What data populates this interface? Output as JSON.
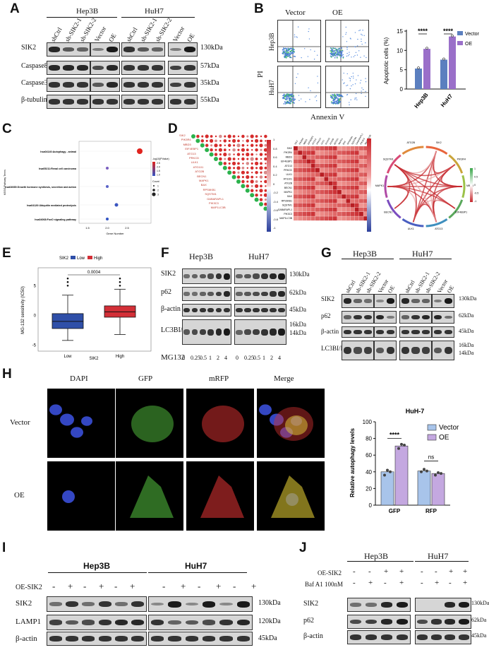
{
  "panels": {
    "A": {
      "letter": "A",
      "groups": [
        "Hep3B",
        "HuH7"
      ],
      "lanes": [
        "shCtrl",
        "sh-SIK2-1",
        "sh-SIK2-2",
        "Vector",
        "OE",
        "shCtrl",
        "sh-SIK2-1",
        "sh-SIK2-2",
        "Vector",
        "OE"
      ],
      "rows": [
        {
          "label": "SIK2",
          "size": "130kDa"
        },
        {
          "label": "Caspase8",
          "size": "57kDa"
        },
        {
          "label": "Caspase3",
          "size": "35kDa"
        },
        {
          "label": "β-tubulin",
          "size": "55kDa"
        }
      ]
    },
    "B": {
      "letter": "B",
      "flow_cols": [
        "Vector",
        "OE"
      ],
      "flow_rows": [
        "Hep3B",
        "HuH7"
      ],
      "ylabel": "PI",
      "xlabel": "Annexin V",
      "legend": [
        "Vector",
        "OE"
      ],
      "sig": "****"
    },
    "C": {
      "letter": "C",
      "terms": [
        "hsa04140:Autophagy - animal",
        "hsa05211:Renal cell carcinoma",
        "hsa04935:Growth hormone synthesis, secretion and action",
        "hsa04120:Ubiquitin mediated proteolysis",
        "hsa04068:FoxO signaling pathway"
      ],
      "ylabel": "KEGG Pathway Terms",
      "xlabel": "Gene Number",
      "xticks": [
        "1.5",
        "2.0",
        "2.5"
      ],
      "legend_title1": "-log10(PValue)",
      "legend_vals1": [
        "2.5",
        "2.0",
        "1.5",
        "1.0"
      ],
      "legend_title2": "Count",
      "legend_vals2": [
        "1",
        "2",
        "3"
      ]
    },
    "D": {
      "letter": "D",
      "genes": [
        "SIK2",
        "PIK3R4",
        "MBD3",
        "EIF4EBP1",
        "ATG13",
        "PRKCD",
        "ULK1",
        "ATG101",
        "ATG2B",
        "BECN1",
        "MAPK1",
        "BAX",
        "RPS6KB1",
        "SQSTM1",
        "GABARAPL1",
        "PIK3C3",
        "MAP1LC3B"
      ],
      "scale": [
        "1",
        "0.8",
        "0.6",
        "0.4",
        "0.2",
        "0",
        "-0.2",
        "-0.4",
        "-0.6",
        "-0.8",
        "-1"
      ],
      "chord_labels": [
        "SIK2",
        "PIK3R4",
        "MBD3",
        "EIF4EBP1",
        "ATG13",
        "ULK1",
        "BECN1",
        "MAPK1",
        "SQSTM1",
        "ATG2B"
      ],
      "chord_scale": [
        "1",
        "0.5",
        "0",
        "-0.5",
        "-1"
      ]
    },
    "E": {
      "letter": "E",
      "legend_title": "SIK2",
      "legend": [
        "Low",
        "High"
      ],
      "pvalue": "0.0004",
      "ylabel": "MG-132 sensitivity (IC50)",
      "xlabel": "SIK2",
      "categories": [
        "Low",
        "High"
      ],
      "yticks": [
        "5",
        "0",
        "-5"
      ]
    },
    "F": {
      "letter": "F",
      "groups": [
        "Hep3B",
        "HuH7"
      ],
      "rows": [
        {
          "label": "SIK2",
          "size": "130kDa"
        },
        {
          "label": "p62",
          "size": "62kDa"
        },
        {
          "label": "β-actin",
          "size": "45kDa"
        },
        {
          "label": "LC3BI/II",
          "size": "16kDa",
          "size2": "14kDa"
        }
      ],
      "treatment": "MG132",
      "doses": [
        "0",
        "0.25",
        "0.5",
        "1",
        "2",
        "4",
        "0",
        "0.25",
        "0.5",
        "1",
        "2",
        "4"
      ]
    },
    "G": {
      "letter": "G",
      "groups": [
        "Hep3B",
        "HuH7"
      ],
      "lanes": [
        "shCtrl",
        "sh-SIK2-1",
        "sh-SIK2-2",
        "Vector",
        "OE",
        "shCtrl",
        "sh-SIK2-1",
        "sh-SIK2-2",
        "Vector",
        "OE"
      ],
      "rows": [
        {
          "label": "SIK2",
          "size": "130kDa"
        },
        {
          "label": "p62",
          "size": "62kDa"
        },
        {
          "label": "β-actin",
          "size": "45kDa"
        },
        {
          "label": "LC3BI/II",
          "size": "16kDa",
          "size2": "14kDa"
        }
      ]
    },
    "H": {
      "letter": "H",
      "channels": [
        "DAPI",
        "GFP",
        "mRFP",
        "Merge"
      ],
      "rows": [
        "Vector",
        "OE"
      ],
      "chart_title": "HuH-7",
      "sig1": "****",
      "sig2": "ns"
    },
    "I": {
      "letter": "I",
      "groups": [
        "Hep3B",
        "HuH7"
      ],
      "treatment": "OE-SIK2",
      "signs": [
        "-",
        "+",
        "-",
        "+",
        "-",
        "+",
        "-",
        "+",
        "-",
        "+",
        "-",
        "+"
      ],
      "rows": [
        {
          "label": "SIK2",
          "size": "130kDa"
        },
        {
          "label": "LAMP1",
          "size": "120kDa"
        },
        {
          "label": "β-actin",
          "size": "45kDa"
        }
      ]
    },
    "J": {
      "letter": "J",
      "groups": [
        "Hep3B",
        "HuH7"
      ],
      "treat1": "OE-SIK2",
      "treat2": "Baf A1 100nM",
      "signs1": [
        "-",
        "-",
        "+",
        "+",
        "-",
        "-",
        "+",
        "+"
      ],
      "signs2": [
        "-",
        "+",
        "-",
        "+",
        "-",
        "+",
        "-",
        "+"
      ],
      "rows": [
        {
          "label": "SIK2",
          "size": "130kDa"
        },
        {
          "label": "p62",
          "size": "62kDa"
        },
        {
          "label": "β-actin",
          "size": "45kDa"
        }
      ]
    }
  },
  "chart_data": [
    {
      "type": "bar",
      "categories": [
        "Hep3B",
        "HuH7"
      ],
      "series": [
        {
          "name": "Vector",
          "values": [
            5.3,
            7.6
          ],
          "color": "#5b7fbf"
        },
        {
          "name": "OE",
          "values": [
            10.4,
            13.6
          ],
          "color": "#9a6fc9"
        }
      ],
      "ylabel": "Apoptotic cells (%)",
      "yticks": [
        0,
        5,
        10,
        15
      ],
      "ylim": [
        0,
        15
      ]
    },
    {
      "type": "bar",
      "categories": [
        "GFP",
        "RFP"
      ],
      "series": [
        {
          "name": "Vector",
          "values": [
            40,
            41
          ],
          "color": "#a8c4ea"
        },
        {
          "name": "OE",
          "values": [
            71,
            38
          ],
          "color": "#c4a8e0"
        }
      ],
      "ylabel": "Relative autophagy levels",
      "yticks": [
        0,
        20,
        40,
        60,
        80,
        100
      ],
      "ylim": [
        0,
        100
      ]
    }
  ]
}
